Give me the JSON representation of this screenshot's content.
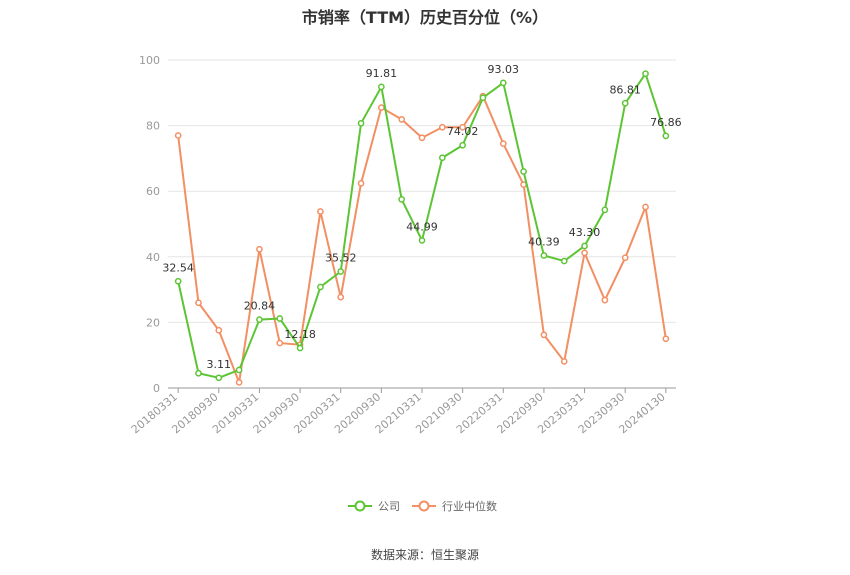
{
  "chart_data": {
    "type": "line",
    "title": "市销率（TTM）历史百分位（%）",
    "source": "数据来源：恒生聚源",
    "ylim": [
      0,
      100
    ],
    "yticks": [
      0,
      20,
      40,
      60,
      80,
      100
    ],
    "grid": true,
    "legend_position": "bottom",
    "x_tick_labels": [
      "20180331",
      "20180930",
      "20190331",
      "20190930",
      "20200331",
      "20200930",
      "20210331",
      "20210930",
      "20220331",
      "20220930",
      "20230331",
      "20230930",
      "20240130"
    ],
    "x": [
      "2018Q1",
      "2018Q2",
      "2018Q3",
      "2018Q4",
      "2019Q1",
      "2019Q2",
      "2019Q3",
      "2019Q4",
      "2020Q1",
      "2020Q2",
      "2020Q3",
      "2020Q4",
      "2021Q1",
      "2021Q2",
      "2021Q3",
      "2021Q4",
      "2022Q1",
      "2022Q2",
      "2022Q3",
      "2022Q4",
      "2023Q1",
      "2023Q2",
      "2023Q3",
      "2023Q4",
      "20240130"
    ],
    "series": [
      {
        "name": "公司",
        "color": "#5cc534",
        "values": [
          32.54,
          4.5,
          3.11,
          5.5,
          20.84,
          21.2,
          12.18,
          30.8,
          35.52,
          80.7,
          91.81,
          57.5,
          44.99,
          70.2,
          74.02,
          88.5,
          93.03,
          66.0,
          40.39,
          38.7,
          43.3,
          54.3,
          86.81,
          95.8,
          76.86
        ],
        "labels": {
          "0": "32.54",
          "2": "3.11",
          "4": "20.84",
          "6": "12.18",
          "8": "35.52",
          "10": "91.81",
          "12": "44.99",
          "14": "74.02",
          "16": "93.03",
          "18": "40.39",
          "20": "43.30",
          "22": "86.81",
          "24": "76.86"
        }
      },
      {
        "name": "行业中位数",
        "color": "#f28f63",
        "values": [
          77.0,
          26.0,
          17.6,
          1.7,
          42.3,
          13.7,
          13.2,
          53.8,
          27.7,
          62.4,
          85.5,
          81.9,
          76.3,
          79.5,
          79.5,
          89.0,
          74.5,
          62.0,
          16.2,
          8.1,
          41.2,
          26.8,
          39.7,
          55.2,
          15.0
        ]
      }
    ]
  }
}
